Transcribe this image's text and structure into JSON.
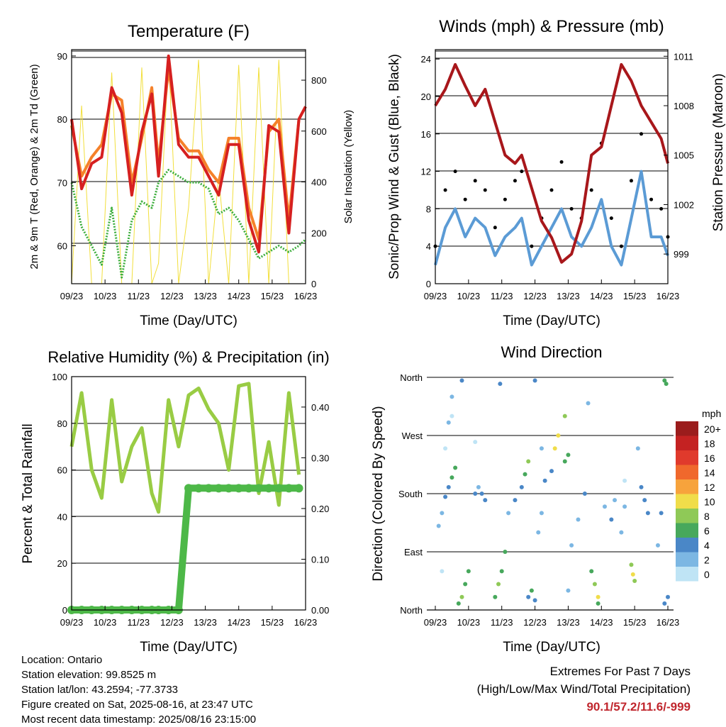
{
  "colors": {
    "red_t2m": "#d62020",
    "orange_t9m": "#f5812a",
    "green_td": "#3cae3c",
    "yellow_solar": "#f2df3c",
    "blue_wind": "#5b9bd5",
    "black_gust": "#000000",
    "maroon_pressure": "#a8171b",
    "rh_green": "#99cc44",
    "precip_green": "#4db848"
  },
  "x_ticks": [
    "09/23",
    "10/23",
    "11/23",
    "12/23",
    "13/23",
    "14/23",
    "15/23",
    "16/23"
  ],
  "x_label": "Time (Day/UTC)",
  "panels": {
    "temperature": {
      "title": "Temperature (F)",
      "ylabel_left": "2m & 9m T (Red, Orange) & 2m Td (Green)",
      "ylabel_right": "Solar Insolation (Yellow)",
      "left_ticks": [
        "60",
        "70",
        "80",
        "90"
      ],
      "right_ticks": [
        "0",
        "200",
        "400",
        "600",
        "800"
      ]
    },
    "winds": {
      "title": "Winds (mph) & Pressure (mb)",
      "ylabel_left": "Sonic/Prop Wind & Gust (Blue, Black)",
      "ylabel_right": "Station Pressure (Maroon)",
      "left_ticks": [
        "0",
        "4",
        "8",
        "12",
        "16",
        "20",
        "24"
      ],
      "right_ticks": [
        "999",
        "1002",
        "1005",
        "1008",
        "1011"
      ]
    },
    "humidity": {
      "title": "Relative Humidity (%) & Precipitation (in)",
      "ylabel_left": "Percent & Total Rainfall",
      "left_ticks": [
        "0",
        "20",
        "40",
        "60",
        "80",
        "100"
      ],
      "right_ticks": [
        "0.00",
        "0.10",
        "0.20",
        "0.30",
        "0.40"
      ]
    },
    "direction": {
      "title": "Wind Direction",
      "ylabel_left": "Direction (Colored By Speed)",
      "dir_ticks": [
        "North",
        "East",
        "South",
        "West",
        "North"
      ],
      "legend_title": "mph",
      "legend_labels": [
        "20+",
        "18",
        "16",
        "14",
        "12",
        "10",
        "8",
        "6",
        "4",
        "2",
        "0"
      ],
      "legend_colors": [
        "#9b1c1c",
        "#c42222",
        "#e03a2c",
        "#f0682c",
        "#f7a33c",
        "#f0dd4a",
        "#8fc957",
        "#47a85c",
        "#4a87c7",
        "#7cb7e3",
        "#bfe4f5"
      ]
    }
  },
  "chart_data": [
    {
      "type": "line",
      "title": "Temperature (F)",
      "xlabel": "Time (Day/UTC)",
      "ylabel": "2m & 9m T (Red, Orange) & 2m Td (Green)",
      "ylabel_right": "Solar Insolation (Yellow)",
      "x": [
        9.0,
        9.3,
        9.6,
        9.9,
        10.2,
        10.5,
        10.8,
        11.1,
        11.4,
        11.6,
        11.9,
        12.2,
        12.5,
        12.8,
        13.1,
        13.4,
        13.7,
        14.0,
        14.3,
        14.6,
        14.9,
        15.2,
        15.5,
        15.8,
        16.0
      ],
      "ylim": [
        54,
        91
      ],
      "ylim_right": [
        0,
        920
      ],
      "series": [
        {
          "name": "2m T",
          "values": [
            80,
            69,
            73,
            74,
            85,
            81,
            68,
            78,
            84,
            71,
            90,
            76,
            74,
            74,
            71,
            68,
            76,
            76,
            64,
            59,
            79,
            78,
            62,
            80,
            82
          ]
        },
        {
          "name": "9m T",
          "values": [
            79,
            71,
            74,
            76,
            84,
            83,
            70,
            77,
            85,
            73,
            88,
            77,
            75,
            75,
            72,
            70,
            77,
            77,
            66,
            61,
            78,
            80,
            64,
            80,
            82
          ]
        },
        {
          "name": "2m Td",
          "values": [
            70,
            63,
            60,
            57,
            66,
            55,
            64,
            67,
            66,
            70,
            72,
            71,
            70,
            70,
            69,
            65,
            66,
            64,
            61,
            58,
            59,
            60,
            59,
            60,
            61
          ]
        },
        {
          "name": "Solar Insolation",
          "values": [
            0,
            700,
            0,
            0,
            830,
            0,
            0,
            850,
            0,
            80,
            900,
            0,
            300,
            880,
            0,
            420,
            0,
            860,
            0,
            850,
            0,
            880,
            0,
            0,
            0
          ]
        }
      ]
    },
    {
      "type": "line",
      "title": "Winds (mph) & Pressure (mb)",
      "xlabel": "Time (Day/UTC)",
      "ylabel": "Sonic/Prop Wind & Gust (Blue, Black)",
      "ylabel_right": "Station Pressure (Maroon)",
      "x": [
        9.0,
        9.3,
        9.6,
        9.9,
        10.2,
        10.5,
        10.8,
        11.1,
        11.4,
        11.6,
        11.9,
        12.2,
        12.5,
        12.8,
        13.1,
        13.4,
        13.7,
        14.0,
        14.3,
        14.6,
        14.9,
        15.2,
        15.5,
        15.8,
        16.0
      ],
      "ylim": [
        0,
        25
      ],
      "ylim_right": [
        997.2,
        1011.4
      ],
      "series": [
        {
          "name": "Wind",
          "values": [
            2,
            6,
            8,
            5,
            7,
            6,
            3,
            5,
            6,
            7,
            2,
            4,
            6,
            8,
            5,
            4,
            6,
            9,
            4,
            2,
            7,
            12,
            5,
            5,
            3
          ]
        },
        {
          "name": "Gust",
          "values": [
            4,
            10,
            12,
            9,
            11,
            10,
            6,
            9,
            11,
            12,
            4,
            7,
            10,
            13,
            8,
            7,
            10,
            15,
            7,
            4,
            11,
            16,
            9,
            8,
            5
          ]
        },
        {
          "name": "Station Pressure",
          "values": [
            1008,
            1009,
            1010.5,
            1009.2,
            1008,
            1009,
            1007,
            1005,
            1004.5,
            1005,
            1003,
            1001,
            1000,
            998.5,
            999,
            1001,
            1005,
            1005.5,
            1008,
            1010.5,
            1009.5,
            1008,
            1007,
            1006,
            1004.5
          ]
        }
      ]
    },
    {
      "type": "line",
      "title": "Relative Humidity (%) & Precipitation (in)",
      "xlabel": "Time (Day/UTC)",
      "ylabel": "Percent & Total Rainfall",
      "x": [
        9.0,
        9.3,
        9.6,
        9.9,
        10.2,
        10.5,
        10.8,
        11.1,
        11.4,
        11.6,
        11.9,
        12.2,
        12.5,
        12.8,
        13.1,
        13.4,
        13.7,
        14.0,
        14.3,
        14.6,
        14.9,
        15.2,
        15.5,
        15.8
      ],
      "ylim": [
        0,
        100
      ],
      "ylim_right": [
        0,
        0.46
      ],
      "series": [
        {
          "name": "RH",
          "values": [
            70,
            93,
            60,
            48,
            90,
            55,
            70,
            78,
            50,
            42,
            90,
            70,
            92,
            95,
            86,
            80,
            60,
            96,
            97,
            50,
            72,
            45,
            93,
            58
          ]
        },
        {
          "name": "Precip",
          "values": [
            0,
            0,
            0,
            0,
            0,
            0,
            0,
            0,
            0,
            0,
            0,
            0,
            0.24,
            0.24,
            0.24,
            0.24,
            0.24,
            0.24,
            0.24,
            0.24,
            0.24,
            0.24,
            0.24,
            0.24
          ]
        }
      ]
    },
    {
      "type": "scatter",
      "title": "Wind Direction",
      "xlabel": "Time (Day/UTC)",
      "ylabel": "Direction (Colored By Speed)",
      "xlim": [
        9,
        16
      ],
      "ylim": [
        0,
        360
      ],
      "points": [
        [
          9.1,
          130,
          3
        ],
        [
          9.2,
          150,
          3
        ],
        [
          9.3,
          175,
          4
        ],
        [
          9.4,
          190,
          5
        ],
        [
          9.5,
          205,
          6
        ],
        [
          9.6,
          220,
          7
        ],
        [
          9.3,
          250,
          1
        ],
        [
          9.5,
          330,
          2
        ],
        [
          9.7,
          10,
          7
        ],
        [
          9.8,
          20,
          8
        ],
        [
          9.9,
          40,
          7
        ],
        [
          10.0,
          60,
          6
        ],
        [
          9.8,
          355,
          5
        ],
        [
          10.2,
          180,
          4
        ],
        [
          10.3,
          190,
          3
        ],
        [
          10.4,
          180,
          5
        ],
        [
          10.5,
          170,
          4
        ],
        [
          10.8,
          20,
          6
        ],
        [
          10.9,
          40,
          8
        ],
        [
          11.0,
          60,
          7
        ],
        [
          11.1,
          90,
          6
        ],
        [
          10.95,
          350,
          5
        ],
        [
          11.2,
          150,
          3
        ],
        [
          11.4,
          170,
          4
        ],
        [
          11.6,
          190,
          5
        ],
        [
          11.7,
          210,
          7
        ],
        [
          11.8,
          230,
          8
        ],
        [
          11.8,
          20,
          5
        ],
        [
          11.9,
          30,
          6
        ],
        [
          12.0,
          15,
          5
        ],
        [
          12.0,
          355,
          4
        ],
        [
          12.1,
          120,
          3
        ],
        [
          12.2,
          150,
          2
        ],
        [
          12.3,
          200,
          4
        ],
        [
          12.5,
          215,
          5
        ],
        [
          12.6,
          250,
          11
        ],
        [
          12.7,
          270,
          10
        ],
        [
          12.9,
          300,
          8
        ],
        [
          12.9,
          230,
          7
        ],
        [
          13.0,
          240,
          6
        ],
        [
          13.1,
          100,
          3
        ],
        [
          13.3,
          140,
          3
        ],
        [
          13.5,
          180,
          4
        ],
        [
          13.7,
          60,
          6
        ],
        [
          13.8,
          40,
          9
        ],
        [
          13.9,
          20,
          10
        ],
        [
          13.9,
          10,
          7
        ],
        [
          14.1,
          160,
          3
        ],
        [
          14.3,
          140,
          4
        ],
        [
          14.4,
          170,
          3
        ],
        [
          14.6,
          120,
          2
        ],
        [
          14.7,
          160,
          3
        ],
        [
          14.9,
          70,
          9
        ],
        [
          14.95,
          55,
          10
        ],
        [
          15.0,
          45,
          8
        ],
        [
          15.2,
          190,
          4
        ],
        [
          15.3,
          170,
          5
        ],
        [
          15.4,
          150,
          4
        ],
        [
          15.7,
          100,
          3
        ],
        [
          15.8,
          150,
          4
        ],
        [
          15.9,
          10,
          5
        ],
        [
          15.9,
          355,
          6
        ],
        [
          15.95,
          350,
          7
        ],
        [
          16.0,
          20,
          4
        ],
        [
          9.4,
          290,
          2
        ],
        [
          9.5,
          300,
          1
        ],
        [
          10.2,
          260,
          1
        ],
        [
          12.2,
          250,
          2
        ],
        [
          13.6,
          320,
          2
        ],
        [
          15.1,
          250,
          3
        ],
        [
          14.7,
          200,
          1
        ],
        [
          9.2,
          60,
          1
        ],
        [
          13.0,
          30,
          2
        ]
      ]
    }
  ],
  "footer": {
    "location": "Location: Ontario",
    "elevation": "Station elevation: 99.8525 m",
    "latlon": "Station lat/lon: 43.2594; -77.3733",
    "created": "Figure created on Sat, 2025-08-16, at 23:47 UTC",
    "recent": "Most recent data timestamp: 2025/08/16 23:15:00",
    "extremes_title": "Extremes For Past 7 Days",
    "extremes_sub": "(High/Low/Max Wind/Total Precipitation)",
    "extremes_values": "90.1/57.2/11.6/-999"
  }
}
